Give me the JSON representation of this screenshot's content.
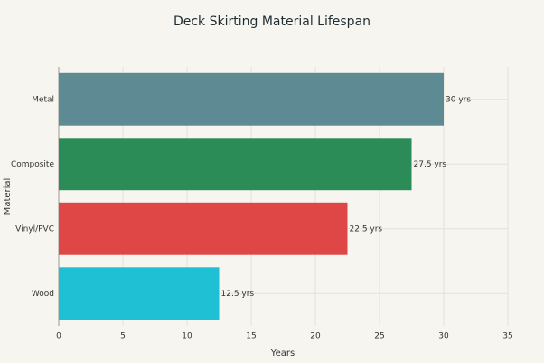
{
  "chart_data": {
    "type": "bar",
    "orientation": "horizontal",
    "title": "Deck Skirting Material Lifespan",
    "x_label": "Years",
    "y_label": "Material",
    "categories": [
      "Metal",
      "Composite",
      "Vinyl/PVC",
      "Wood"
    ],
    "values": [
      30,
      27.5,
      22.5,
      12.5
    ],
    "value_labels": [
      "30 yrs",
      "27.5 yrs",
      "22.5 yrs",
      "12.5 yrs"
    ],
    "colors": [
      "#5e8b93",
      "#2b8c58",
      "#df4646",
      "#1fc0d4"
    ],
    "xlim": [
      0,
      35
    ],
    "xticks": [
      0,
      5,
      10,
      15,
      20,
      25,
      30,
      35
    ],
    "grid": true
  }
}
